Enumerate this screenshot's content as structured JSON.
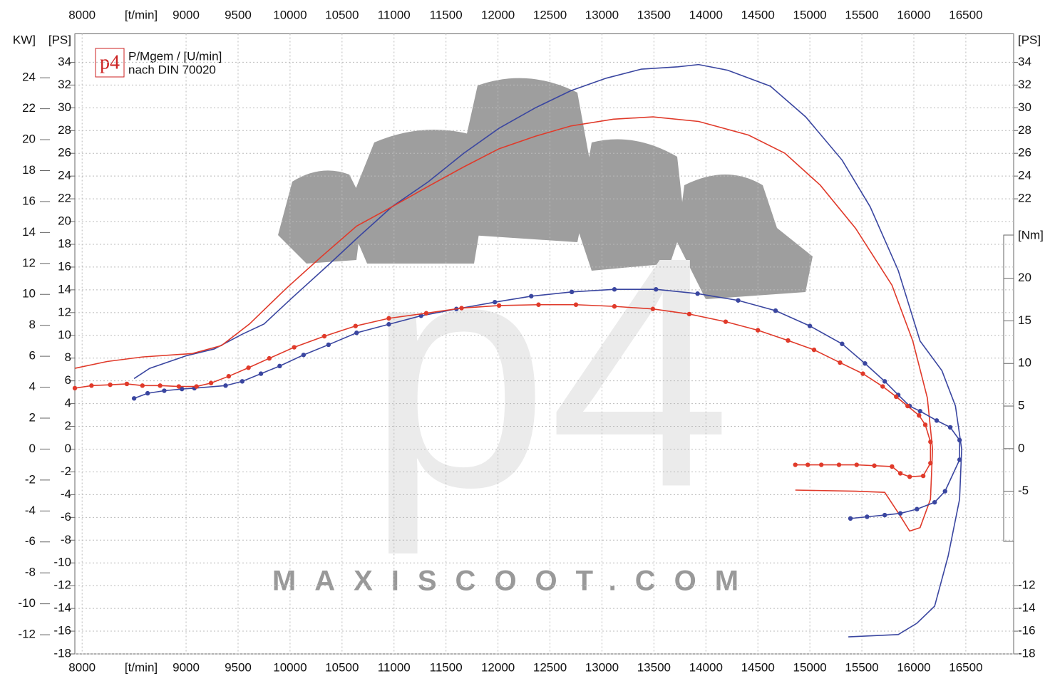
{
  "chart_data": {
    "type": "dyno",
    "x_unit": "[t/min]",
    "y_left_kw_label": "KW]",
    "y_left_ps_label": "[PS]",
    "y_right_ps_label": "[PS]",
    "y2_label": "[Nm]",
    "legend_logo": "p4",
    "legend_text": [
      "P/Mgem / [U/min]",
      "nach DIN 70020"
    ],
    "watermark_logo": "p4",
    "watermark": "MAXISCOOT.COM",
    "xlim": [
      7930,
      16960
    ],
    "xticks": [
      8000,
      9000,
      9500,
      10000,
      10500,
      11000,
      11500,
      12000,
      12500,
      13000,
      13500,
      14000,
      14500,
      15000,
      15500,
      16000,
      16500
    ],
    "ylim": [
      -18,
      36.5
    ],
    "yticks": [
      34,
      32,
      30,
      28,
      26,
      24,
      22,
      20,
      18,
      16,
      14,
      12,
      10,
      8,
      6,
      4,
      2,
      0,
      -2,
      -4,
      -6,
      -8,
      -10,
      -12,
      -14,
      -16,
      -18
    ],
    "y_kw_lim": [
      -13.24,
      26.84
    ],
    "y_kw_ticks": [
      24,
      22,
      20,
      18,
      16,
      14,
      12,
      10,
      8,
      6,
      4,
      2,
      0,
      -2,
      -4,
      -6,
      -8,
      -10,
      -12
    ],
    "y_right_ps_ticks": [
      34,
      32,
      30,
      28,
      26,
      24,
      22,
      -12,
      -14,
      -16,
      -18
    ],
    "y2lim": [
      -24.1,
      48.7
    ],
    "y2ticks": [
      20,
      15,
      10,
      5,
      0,
      -5
    ],
    "grid": true,
    "series": [
      {
        "color": "#3a46a0",
        "axis": "y",
        "markers": false,
        "x": [
          8500,
          8650,
          9000,
          9270,
          9540,
          9750,
          10020,
          10370,
          10640,
          10980,
          11330,
          11670,
          12010,
          12360,
          12700,
          13040,
          13380,
          13730,
          13930,
          14210,
          14620,
          14960,
          15310,
          15580,
          15850,
          16060,
          16270,
          16400,
          16460,
          16440,
          16330,
          16200,
          16030,
          15850,
          15370
        ],
        "values": [
          6.2,
          7.1,
          8.2,
          8.8,
          10.1,
          11.0,
          13.3,
          16.2,
          18.5,
          21.3,
          23.5,
          26.0,
          28.2,
          30.0,
          31.5,
          32.6,
          33.4,
          33.6,
          33.8,
          33.3,
          31.9,
          29.2,
          25.4,
          21.3,
          15.7,
          9.5,
          6.9,
          3.8,
          0.0,
          -4.4,
          -9.4,
          -13.8,
          -15.3,
          -16.3,
          -16.5
        ]
      },
      {
        "color": "#e03a2a",
        "axis": "y",
        "markers": false,
        "x": [
          7930,
          8240,
          8580,
          9060,
          9340,
          9610,
          9960,
          10300,
          10640,
          10980,
          11330,
          11670,
          12010,
          12360,
          12700,
          13110,
          13490,
          13930,
          14410,
          14760,
          15100,
          15440,
          15790,
          15990,
          16130,
          16180,
          16160,
          16060,
          15960,
          15850,
          15720,
          15440,
          14860
        ],
        "values": [
          7.1,
          7.7,
          8.1,
          8.4,
          9.1,
          11.0,
          14.1,
          16.9,
          19.6,
          21.3,
          23.1,
          24.8,
          26.4,
          27.5,
          28.4,
          29.0,
          29.2,
          28.8,
          27.6,
          26.0,
          23.2,
          19.4,
          14.4,
          9.5,
          4.5,
          0.0,
          -4.4,
          -6.9,
          -7.2,
          -5.6,
          -3.8,
          -3.7,
          -3.6
        ]
      },
      {
        "color": "#3a46a0",
        "axis": "y2",
        "markers": true,
        "x": [
          8500,
          8630,
          8790,
          8960,
          9080,
          9380,
          9540,
          9720,
          9900,
          10130,
          10370,
          10640,
          10950,
          11260,
          11600,
          11970,
          12320,
          12710,
          13120,
          13520,
          13920,
          14310,
          14670,
          15000,
          15310,
          15530,
          15720,
          15850,
          15960,
          16060,
          16220,
          16350,
          16440,
          16440,
          16300,
          16200,
          16030,
          15870,
          15720,
          15550,
          15390
        ],
        "values": [
          5.9,
          6.5,
          6.8,
          7.0,
          7.1,
          7.4,
          7.9,
          8.8,
          9.7,
          11.0,
          12.2,
          13.6,
          14.6,
          15.6,
          16.4,
          17.2,
          17.9,
          18.4,
          18.7,
          18.7,
          18.2,
          17.4,
          16.2,
          14.4,
          12.3,
          10.0,
          7.9,
          6.3,
          5.0,
          4.4,
          3.3,
          2.5,
          1.0,
          -1.3,
          -5.0,
          -6.3,
          -7.1,
          -7.6,
          -7.8,
          -8.0,
          -8.2
        ]
      },
      {
        "color": "#e03a2a",
        "axis": "y2",
        "markers": true,
        "x": [
          7930,
          8090,
          8270,
          8430,
          8580,
          8750,
          8930,
          9100,
          9240,
          9410,
          9600,
          9800,
          10040,
          10330,
          10630,
          10950,
          11310,
          11650,
          12010,
          12390,
          12750,
          13120,
          13490,
          13840,
          14190,
          14500,
          14790,
          15040,
          15290,
          15510,
          15700,
          15830,
          15940,
          16050,
          16110,
          16160,
          16160,
          16090,
          15960,
          15870,
          15790,
          15620,
          15450,
          15280,
          15110,
          14980,
          14860
        ],
        "values": [
          7.1,
          7.4,
          7.5,
          7.6,
          7.4,
          7.4,
          7.3,
          7.3,
          7.7,
          8.5,
          9.5,
          10.6,
          11.9,
          13.2,
          14.4,
          15.3,
          15.9,
          16.5,
          16.8,
          16.9,
          16.9,
          16.7,
          16.4,
          15.8,
          14.9,
          13.9,
          12.7,
          11.6,
          10.1,
          8.8,
          7.3,
          6.1,
          5.0,
          3.9,
          2.8,
          0.8,
          -1.7,
          -3.2,
          -3.3,
          -2.9,
          -2.1,
          -2.0,
          -1.9,
          -1.9,
          -1.9,
          -1.9,
          -1.9
        ]
      }
    ]
  }
}
